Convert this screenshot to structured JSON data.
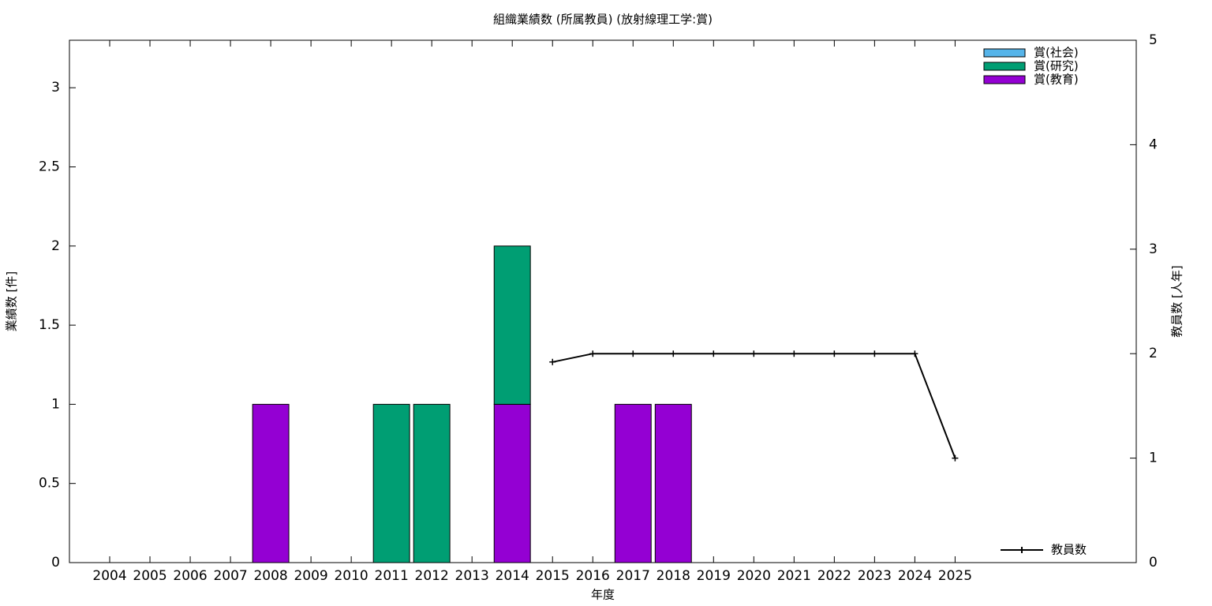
{
  "chart_data": {
    "type": "bar",
    "title": "組織業績数 (所属教員) (放射線理工学:賞)",
    "x_label": "年度",
    "y_label": "業績数 [件]",
    "y2_label": "教員数 [人年]",
    "categories": [
      "2004",
      "2005",
      "2006",
      "2007",
      "2008",
      "2009",
      "2010",
      "2011",
      "2012",
      "2013",
      "2014",
      "2015",
      "2016",
      "2017",
      "2018",
      "2019",
      "2020",
      "2021",
      "2022",
      "2023",
      "2024",
      "2025"
    ],
    "series": [
      {
        "name": "賞(教育)",
        "color": "#9400d3",
        "values": [
          0,
          0,
          0,
          0,
          1,
          0,
          0,
          0,
          0,
          0,
          1,
          0,
          0,
          1,
          1,
          0,
          0,
          0,
          0,
          0,
          0,
          0
        ]
      },
      {
        "name": "賞(研究)",
        "color": "#009e73",
        "values": [
          0,
          0,
          0,
          0,
          0,
          0,
          0,
          1,
          1,
          0,
          1,
          0,
          0,
          0,
          0,
          0,
          0,
          0,
          0,
          0,
          0,
          0
        ]
      },
      {
        "name": "賞(社会)",
        "color": "#56b4e9",
        "values": [
          0,
          0,
          0,
          0,
          0,
          0,
          0,
          0,
          0,
          0,
          0,
          0,
          0,
          0,
          0,
          0,
          0,
          0,
          0,
          0,
          0,
          0
        ]
      },
      {
        "name": "教員数",
        "color": "#000000",
        "type": "line",
        "axis": "y2",
        "values": [
          null,
          null,
          null,
          null,
          null,
          null,
          null,
          null,
          null,
          null,
          null,
          1.92,
          2,
          2,
          2,
          2,
          2,
          2,
          2,
          2,
          2,
          1
        ]
      }
    ],
    "ylim": [
      0,
      3.3
    ],
    "yticks": [
      0,
      0.5,
      1,
      1.5,
      2,
      2.5,
      3
    ],
    "y2lim": [
      0,
      5
    ],
    "y2ticks": [
      0,
      1,
      2,
      3,
      4,
      5
    ]
  }
}
